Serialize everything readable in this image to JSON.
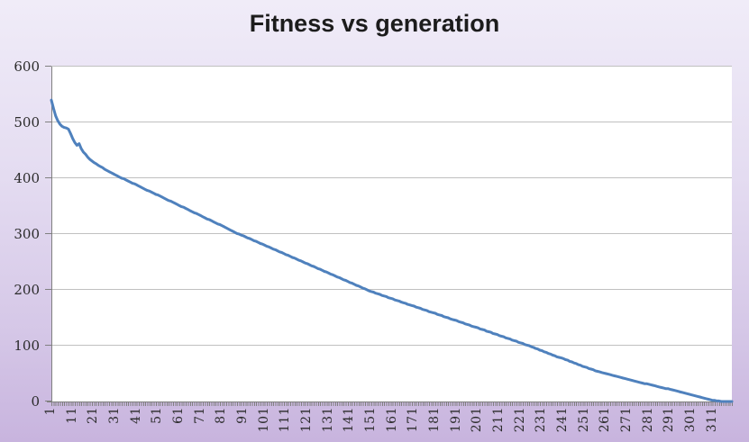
{
  "chart_data": {
    "type": "line",
    "title": "Fitness vs generation",
    "xlabel": "",
    "ylabel": "",
    "x_range": [
      1,
      320
    ],
    "ylim": [
      0,
      600
    ],
    "grid": true,
    "legend": "none",
    "y_ticks": [
      0,
      100,
      200,
      300,
      400,
      500,
      600
    ],
    "x_tick_labels": [
      "1",
      "11",
      "21",
      "31",
      "41",
      "51",
      "61",
      "71",
      "81",
      "91",
      "101",
      "111",
      "121",
      "131",
      "141",
      "151",
      "161",
      "171",
      "181",
      "191",
      "201",
      "211",
      "221",
      "231",
      "241",
      "251",
      "261",
      "271",
      "281",
      "291",
      "301",
      "311"
    ],
    "series": [
      {
        "name": "Fitness",
        "values": [
          540,
          525,
          512,
          503,
          497,
          493,
          491,
          490,
          488,
          480,
          471,
          464,
          459,
          462,
          453,
          447,
          443,
          438,
          434,
          431,
          428,
          426,
          423,
          421,
          419,
          416,
          414,
          412,
          410,
          408,
          406,
          404,
          402,
          400,
          399,
          397,
          395,
          393,
          391,
          390,
          388,
          386,
          384,
          382,
          380,
          378,
          377,
          375,
          373,
          371,
          370,
          368,
          366,
          364,
          362,
          360,
          359,
          357,
          355,
          353,
          351,
          349,
          348,
          346,
          344,
          342,
          340,
          338,
          337,
          335,
          333,
          331,
          329,
          327,
          326,
          324,
          322,
          320,
          318,
          317,
          315,
          313,
          311,
          309,
          307,
          305,
          303,
          301,
          300,
          298,
          297,
          295,
          293,
          292,
          290,
          288,
          287,
          285,
          283,
          282,
          280,
          278,
          277,
          275,
          273,
          272,
          270,
          268,
          267,
          265,
          263,
          262,
          260,
          258,
          257,
          255,
          253,
          252,
          250,
          248,
          247,
          245,
          243,
          242,
          240,
          238,
          237,
          235,
          233,
          232,
          230,
          228,
          227,
          225,
          223,
          222,
          220,
          218,
          217,
          215,
          213,
          212,
          210,
          208,
          207,
          205,
          203,
          202,
          200,
          198,
          197,
          196,
          194,
          193,
          192,
          190,
          189,
          188,
          186,
          185,
          184,
          182,
          181,
          180,
          178,
          177,
          176,
          174,
          173,
          172,
          171,
          169,
          168,
          167,
          165,
          164,
          163,
          161,
          160,
          159,
          158,
          156,
          155,
          154,
          152,
          151,
          150,
          148,
          147,
          146,
          145,
          143,
          142,
          141,
          139,
          138,
          137,
          135,
          134,
          133,
          132,
          130,
          129,
          128,
          126,
          125,
          124,
          122,
          121,
          120,
          118,
          117,
          116,
          114,
          113,
          112,
          110,
          109,
          108,
          106,
          105,
          104,
          102,
          101,
          100,
          98,
          97,
          95,
          94,
          92,
          91,
          89,
          88,
          86,
          85,
          83,
          82,
          80,
          79,
          78,
          77,
          75,
          74,
          72,
          71,
          69,
          68,
          66,
          65,
          63,
          62,
          61,
          59,
          58,
          57,
          55,
          54,
          53,
          52,
          51,
          50,
          49,
          48,
          47,
          46,
          45,
          44,
          43,
          42,
          41,
          40,
          39,
          38,
          37,
          36,
          35,
          34,
          33,
          32,
          32,
          31,
          30,
          29,
          28,
          27,
          26,
          25,
          24,
          23,
          23,
          22,
          21,
          20,
          19,
          18,
          17,
          16,
          15,
          14,
          13,
          12,
          11,
          10,
          9,
          8,
          7,
          6,
          5,
          4,
          3,
          2,
          2,
          1,
          1,
          0,
          0,
          0,
          0,
          0,
          0
        ]
      }
    ],
    "colors": {
      "line": "#4F81BD",
      "gridline": "#C0C0C0",
      "axis": "#808080",
      "tick_label": "#2b2b2b",
      "title": "#1c1c1c",
      "plot_background": "#FFFFFF",
      "background_top": "#F0ECF8",
      "background_bottom": "#C8B4DE"
    }
  }
}
